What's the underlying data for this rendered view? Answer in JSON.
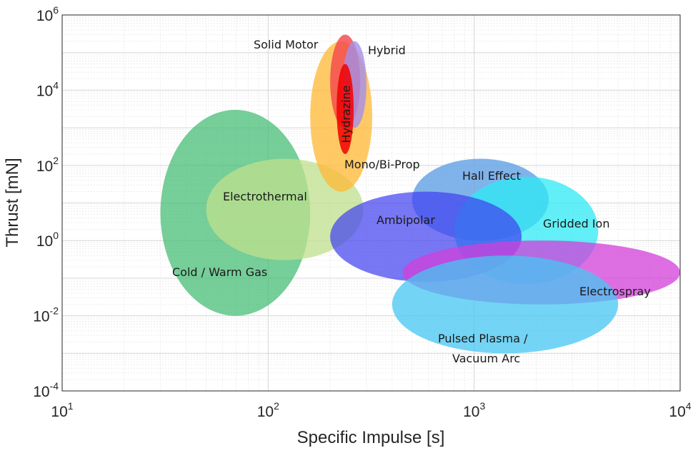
{
  "chart_data": {
    "type": "scatter",
    "xscale": "log",
    "yscale": "log",
    "xlim": [
      10,
      10000
    ],
    "ylim": [
      0.0001,
      1000000
    ],
    "xlabel": "Specific Impulse [s]",
    "ylabel": "Thrust [mN]",
    "grid": true,
    "x_ticks": [
      {
        "value": 10,
        "base": "10",
        "exp": "1"
      },
      {
        "value": 100,
        "base": "10",
        "exp": "2"
      },
      {
        "value": 1000,
        "base": "10",
        "exp": "3"
      },
      {
        "value": 10000,
        "base": "10",
        "exp": "4"
      }
    ],
    "y_ticks": [
      {
        "value": 0.0001,
        "base": "10",
        "exp": "-4"
      },
      {
        "value": 0.01,
        "base": "10",
        "exp": "-2"
      },
      {
        "value": 1,
        "base": "10",
        "exp": "0"
      },
      {
        "value": 100,
        "base": "10",
        "exp": "2"
      },
      {
        "value": 10000,
        "base": "10",
        "exp": "4"
      },
      {
        "value": 1000000,
        "base": "10",
        "exp": "6"
      }
    ],
    "regions": [
      {
        "name": "Cold / Warm Gas",
        "isp_range": [
          30,
          160
        ],
        "thrust_range": [
          0.01,
          3000
        ],
        "color": "#3cb96e",
        "opacity": 0.7
      },
      {
        "name": "Electrothermal",
        "isp_range": [
          50,
          290
        ],
        "thrust_range": [
          0.3,
          150
        ],
        "color": "#bfe08e",
        "opacity": 0.75
      },
      {
        "name": "Mono/Bi-Prop",
        "isp_range": [
          160,
          320
        ],
        "thrust_range": [
          20,
          200000
        ],
        "color": "#ffb833",
        "opacity": 0.75
      },
      {
        "name": "Solid Motor",
        "isp_range": [
          200,
          280
        ],
        "thrust_range": [
          1000,
          300000
        ],
        "color": "#f2454b",
        "opacity": 0.8
      },
      {
        "name": "Hybrid",
        "isp_range": [
          230,
          300
        ],
        "thrust_range": [
          1000,
          200000
        ],
        "color": "#a58ee8",
        "opacity": 0.8
      },
      {
        "name": "Hydrazine",
        "isp_range": [
          215,
          260
        ],
        "thrust_range": [
          200,
          50000
        ],
        "color": "#f00000",
        "opacity": 0.85
      },
      {
        "name": "Hall Effect",
        "isp_range": [
          500,
          2300
        ],
        "thrust_range": [
          1,
          150
        ],
        "color": "#6aa6e6",
        "opacity": 0.85
      },
      {
        "name": "Gridded Ion",
        "isp_range": [
          800,
          4000
        ],
        "thrust_range": [
          0.07,
          50
        ],
        "color": "#2ee9f4",
        "opacity": 0.75
      },
      {
        "name": "Ambipolar",
        "isp_range": [
          200,
          1700
        ],
        "thrust_range": [
          0.08,
          20
        ],
        "color": "#3f3ff0",
        "opacity": 0.7
      },
      {
        "name": "Electrospray",
        "isp_range": [
          450,
          10000
        ],
        "thrust_range": [
          0.02,
          1
        ],
        "color": "#d13fda",
        "opacity": 0.75
      },
      {
        "name": "Pulsed Plasma / Vacuum Arc",
        "isp_range": [
          400,
          5000
        ],
        "thrust_range": [
          0.001,
          0.4
        ],
        "color": "#45c5f2",
        "opacity": 0.75
      }
    ],
    "labels": [
      {
        "text": "Solid Motor",
        "for": "Solid Motor"
      },
      {
        "text": "Hybrid",
        "for": "Hybrid"
      },
      {
        "text": "Hydrazine",
        "for": "Hydrazine"
      },
      {
        "text": "Mono/Bi-Prop",
        "for": "Mono/Bi-Prop"
      },
      {
        "text": "Electrothermal",
        "for": "Electrothermal"
      },
      {
        "text": "Cold / Warm Gas",
        "for": "Cold / Warm Gas"
      },
      {
        "text": "Hall Effect",
        "for": "Hall Effect"
      },
      {
        "text": "Ambipolar",
        "for": "Ambipolar"
      },
      {
        "text": "Gridded Ion",
        "for": "Gridded Ion"
      },
      {
        "text": "Electrospray",
        "for": "Electrospray"
      },
      {
        "text": "Pulsed Plasma /",
        "for": "Pulsed Plasma / Vacuum Arc"
      },
      {
        "text": "Vacuum Arc",
        "for": "Pulsed Plasma / Vacuum Arc"
      }
    ]
  }
}
